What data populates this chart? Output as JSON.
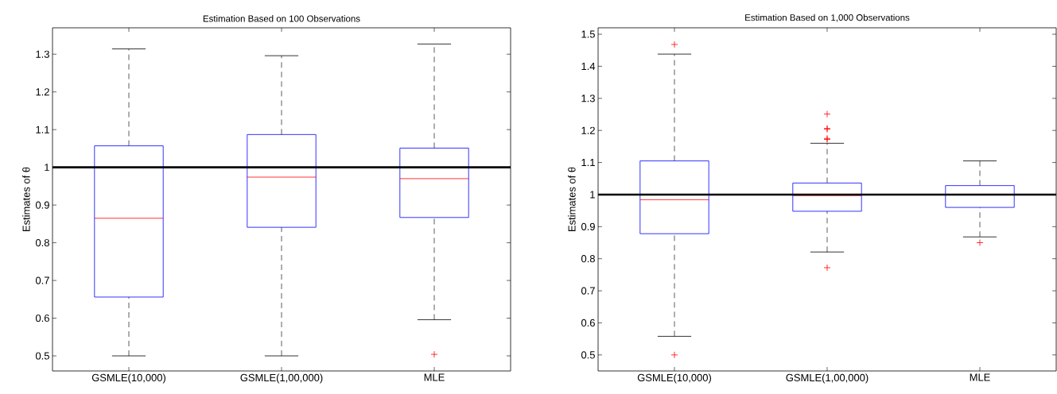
{
  "chart_data": [
    {
      "type": "box",
      "title": "Estimation Based on 100 Observations",
      "ylabel": "Estimates of θ",
      "categories": [
        "GSMLE(10,000)",
        "GSMLE(1,00,000)",
        "MLE"
      ],
      "series": [
        {
          "color": "#0000ff",
          "boxes": [
            {
              "low": 0.5,
              "q1": 0.656,
              "median": 0.865,
              "q3": 1.057,
              "high": 1.314
            },
            {
              "low": 0.5,
              "q1": 0.841,
              "median": 0.974,
              "q3": 1.087,
              "high": 1.296
            },
            {
              "low": 0.596,
              "q1": 0.867,
              "median": 0.97,
              "q3": 1.051,
              "high": 1.327,
              "outliers": [
                0.504
              ]
            }
          ]
        }
      ],
      "ylim": [
        0.46,
        1.37
      ],
      "yticks": [
        0.5,
        0.6,
        0.7,
        0.8,
        0.9,
        1,
        1.1,
        1.2,
        1.3
      ],
      "ref_lines": [
        {
          "axis": "y",
          "value": 1,
          "color": "#000000"
        }
      ]
    },
    {
      "type": "box",
      "title": "Estimation Based on 1,000 Observations",
      "ylabel": "Estimates of θ",
      "categories": [
        "GSMLE(10,000)",
        "GSMLE(1,00,000)",
        "MLE"
      ],
      "series": [
        {
          "color": "#0000ff",
          "boxes": [
            {
              "low": 0.558,
              "q1": 0.878,
              "median": 0.984,
              "q3": 1.105,
              "high": 1.438,
              "outliers": [
                1.468,
                0.5
              ]
            },
            {
              "low": 0.821,
              "q1": 0.948,
              "median": 0.997,
              "q3": 1.036,
              "high": 1.16,
              "outliers": [
                1.251,
                1.206,
                1.204,
                1.175,
                1.172,
                0.772
              ]
            },
            {
              "low": 0.868,
              "q1": 0.96,
              "median": 0.999,
              "q3": 1.028,
              "high": 1.105,
              "outliers": [
                0.85
              ]
            }
          ]
        }
      ],
      "ylim": [
        0.45,
        1.52
      ],
      "yticks": [
        0.5,
        0.6,
        0.7,
        0.8,
        0.9,
        1,
        1.1,
        1.2,
        1.3,
        1.4,
        1.5
      ],
      "ref_lines": [
        {
          "axis": "y",
          "value": 1,
          "color": "#000000"
        }
      ]
    }
  ]
}
